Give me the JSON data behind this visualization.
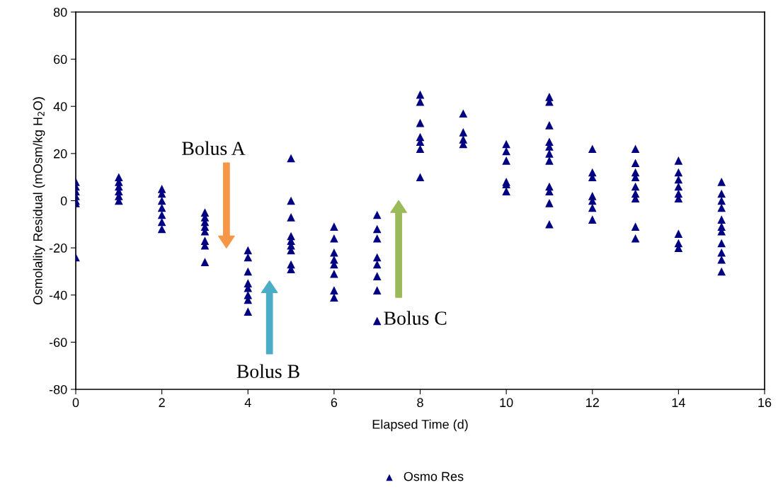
{
  "chart_data": {
    "type": "scatter",
    "xlabel": "Elapsed Time (d)",
    "ylabel": "Osmolality Residual (mOsm/kg H$_{2}$O)",
    "xlim": [
      0,
      16
    ],
    "xticks": [
      0,
      2,
      4,
      6,
      8,
      10,
      12,
      14,
      16
    ],
    "ylim": [
      -80,
      80
    ],
    "yticks": [
      -80,
      -60,
      -40,
      -20,
      0,
      20,
      40,
      60,
      80
    ],
    "grid": false,
    "legend": "bottom",
    "marker": "triangle",
    "series": [
      {
        "name": "Osmo Res",
        "color": "#000080",
        "x": [
          0,
          0,
          0,
          0,
          0,
          0,
          0,
          1,
          1,
          1,
          1,
          1,
          1,
          2,
          2,
          2,
          2,
          2,
          2,
          2,
          3,
          3,
          3,
          3,
          3,
          3,
          3,
          3,
          4,
          4,
          4,
          4,
          4,
          4,
          4,
          4,
          5,
          5,
          5,
          5,
          5,
          5,
          5,
          5,
          5,
          6,
          6,
          6,
          6,
          6,
          6,
          6,
          6,
          7,
          7,
          7,
          7,
          7,
          7,
          7,
          7,
          8,
          8,
          8,
          8,
          8,
          8,
          8,
          9,
          9,
          9,
          9,
          10,
          10,
          10,
          10,
          10,
          10,
          11,
          11,
          11,
          11,
          11,
          11,
          11,
          11,
          11,
          11,
          11,
          12,
          12,
          12,
          12,
          12,
          12,
          12,
          13,
          13,
          13,
          13,
          13,
          13,
          13,
          13,
          13,
          14,
          14,
          14,
          14,
          14,
          14,
          14,
          14,
          14,
          15,
          15,
          15,
          15,
          15,
          15,
          15,
          15,
          15,
          15,
          15
        ],
        "values": [
          8,
          6,
          4,
          2,
          0,
          -1,
          -24,
          10,
          8,
          6,
          4,
          2,
          0,
          5,
          3,
          0,
          -3,
          -6,
          -9,
          -12,
          -5,
          -7,
          -9,
          -11,
          -13,
          -17,
          -19,
          -26,
          -21,
          -24,
          -30,
          -35,
          -37,
          -40,
          -42,
          -47,
          18,
          0,
          -7,
          -15,
          -17,
          -19,
          -21,
          -27,
          -29,
          -11,
          -16,
          -22,
          -25,
          -27,
          -31,
          -38,
          -41,
          -6,
          -12,
          -16,
          -24,
          -27,
          -32,
          -38,
          -51,
          45,
          42,
          33,
          27,
          25,
          22,
          10,
          37,
          29,
          26,
          24,
          24,
          21,
          17,
          8,
          7,
          4,
          44,
          42,
          32,
          25,
          23,
          20,
          17,
          6,
          4,
          -1,
          -10,
          22,
          12,
          10,
          2,
          0,
          -3,
          -8,
          22,
          16,
          12,
          10,
          6,
          3,
          1,
          -11,
          -16,
          17,
          12,
          9,
          6,
          3,
          1,
          -14,
          -18,
          -20,
          8,
          3,
          0,
          -3,
          -8,
          -11,
          -13,
          -18,
          -22,
          -25,
          -30
        ]
      }
    ],
    "annotations": [
      "Bolus A",
      "Bolus B",
      "Bolus C"
    ]
  }
}
